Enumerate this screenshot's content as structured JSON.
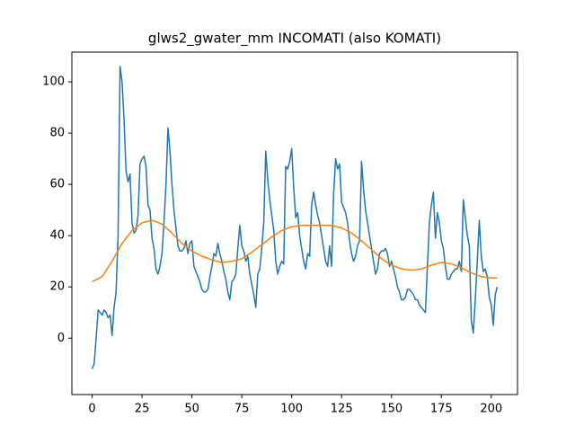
{
  "chart_data": {
    "type": "line",
    "title": "glws2_gwater_mm INCOMATI (also KOMATI)",
    "xlim": [
      -10.15,
      213.15
    ],
    "xticks": [
      0,
      25,
      50,
      75,
      100,
      125,
      150,
      175,
      200
    ],
    "ylim": [
      -22,
      111.6
    ],
    "yticks": [
      0,
      20,
      40,
      60,
      80,
      100
    ],
    "series": [
      {
        "color": "#1f77b4",
        "x": [
          0,
          1,
          2,
          3,
          4,
          5,
          6,
          7,
          8,
          9,
          10,
          11,
          12,
          13,
          14,
          15,
          16,
          17,
          18,
          19,
          20,
          21,
          22,
          23,
          24,
          25,
          26,
          27,
          28,
          29,
          30,
          31,
          32,
          33,
          34,
          35,
          36,
          37,
          38,
          39,
          40,
          41,
          42,
          43,
          44,
          45,
          46,
          47,
          48,
          49,
          50,
          51,
          52,
          53,
          54,
          55,
          56,
          57,
          58,
          59,
          60,
          61,
          62,
          63,
          64,
          65,
          66,
          67,
          68,
          69,
          70,
          71,
          72,
          73,
          74,
          75,
          76,
          77,
          78,
          79,
          80,
          81,
          82,
          83,
          84,
          85,
          86,
          87,
          88,
          89,
          90,
          91,
          92,
          93,
          94,
          95,
          96,
          97,
          98,
          99,
          100,
          101,
          102,
          103,
          104,
          105,
          106,
          107,
          108,
          109,
          110,
          111,
          112,
          113,
          114,
          115,
          116,
          117,
          118,
          119,
          120,
          121,
          122,
          123,
          124,
          125,
          126,
          127,
          128,
          129,
          130,
          131,
          132,
          133,
          134,
          135,
          136,
          137,
          138,
          139,
          140,
          141,
          142,
          143,
          144,
          145,
          146,
          147,
          148,
          149,
          150,
          151,
          152,
          153,
          154,
          155,
          156,
          157,
          158,
          159,
          160,
          161,
          162,
          163,
          164,
          165,
          166,
          167,
          168,
          169,
          170,
          171,
          172,
          173,
          174,
          175,
          176,
          177,
          178,
          179,
          180,
          181,
          182,
          183,
          184,
          185,
          186,
          187,
          188,
          189,
          190,
          191,
          192,
          193,
          194,
          195,
          196,
          197,
          198,
          199,
          200,
          201,
          202,
          203
        ],
        "values": [
          -12,
          -10,
          0,
          11,
          10,
          9,
          11,
          10,
          8,
          9,
          1,
          12,
          18,
          40,
          106,
          100,
          85,
          65,
          61,
          64,
          45,
          41,
          42,
          48,
          68,
          70,
          71,
          67,
          52,
          50,
          39,
          35,
          27,
          25,
          28,
          33,
          45,
          60,
          82,
          73,
          60,
          50,
          43,
          36,
          34,
          34,
          35,
          38,
          33,
          37,
          38,
          28,
          26,
          24,
          22,
          19,
          18,
          18,
          19,
          24,
          28,
          33,
          32,
          37,
          33,
          30,
          26,
          23,
          18,
          15,
          22,
          23,
          25,
          35,
          44,
          36,
          34,
          30,
          32,
          25,
          21,
          17,
          12,
          25,
          27,
          35,
          45,
          73,
          62,
          54,
          48,
          42,
          30,
          25,
          28,
          30,
          29,
          67,
          66,
          69,
          74,
          59,
          47,
          49,
          40,
          35,
          30,
          27,
          33,
          32,
          52,
          57,
          52,
          48,
          45,
          40,
          35,
          30,
          28,
          36,
          28,
          56,
          70,
          66,
          68,
          53,
          51,
          49,
          45,
          38,
          33,
          30,
          32,
          36,
          38,
          69,
          58,
          50,
          45,
          40,
          35,
          30,
          25,
          27,
          33,
          34,
          34,
          35,
          33,
          28,
          30,
          27,
          24,
          20,
          18,
          15,
          15,
          16,
          19,
          19,
          18,
          17,
          15,
          15,
          13,
          12,
          11,
          10,
          28,
          45,
          52,
          57,
          39,
          49,
          45,
          38,
          35,
          28,
          23,
          23,
          25,
          26,
          27,
          27,
          30,
          26,
          54,
          47,
          40,
          36,
          7,
          2,
          15,
          30,
          46,
          32,
          26,
          27,
          24,
          16,
          13,
          5,
          17,
          20
        ]
      },
      {
        "color": "#ff7f0e",
        "x": [
          0,
          5,
          10,
          15,
          20,
          25,
          30,
          35,
          40,
          45,
          50,
          55,
          60,
          65,
          70,
          75,
          80,
          85,
          90,
          95,
          100,
          105,
          110,
          115,
          120,
          125,
          130,
          135,
          140,
          145,
          150,
          155,
          160,
          165,
          170,
          175,
          180,
          185,
          190,
          195,
          200,
          203
        ],
        "values": [
          22,
          24,
          30,
          37,
          42,
          45,
          46,
          44.5,
          41,
          37,
          34,
          32,
          30.5,
          29.5,
          30,
          31,
          33.5,
          36.5,
          39.5,
          42,
          43.5,
          44,
          44,
          44,
          44,
          43,
          41,
          38,
          34.5,
          31,
          28.5,
          27,
          26.5,
          27,
          28.5,
          29.5,
          29,
          27.5,
          25.5,
          24,
          23.5,
          23.5
        ]
      }
    ]
  }
}
